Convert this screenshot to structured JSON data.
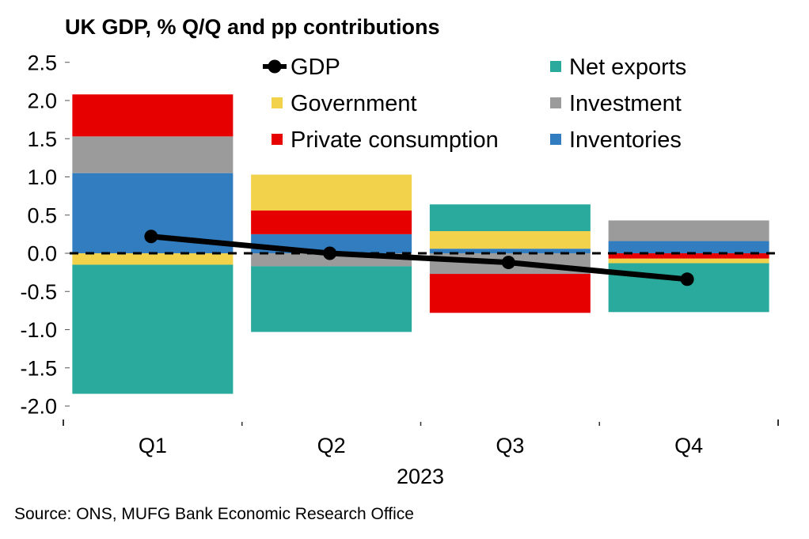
{
  "chart_data": {
    "type": "bar",
    "stacked": true,
    "title": "UK GDP, % Q/Q and pp contributions",
    "xlabel": "2023",
    "ylabel": "",
    "ylim": [
      -2.0,
      2.5
    ],
    "yticks": [
      "2.5",
      "2.0",
      "1.5",
      "1.0",
      "0.5",
      "0.0",
      "-0.5",
      "-1.0",
      "-1.5",
      "-2.0"
    ],
    "ytick_values": [
      2.5,
      2.0,
      1.5,
      1.0,
      0.5,
      0.0,
      -0.5,
      -1.0,
      -1.5,
      -2.0
    ],
    "categories": [
      "Q1",
      "Q2",
      "Q3",
      "Q4"
    ],
    "zero_line": "dashed",
    "grid": false,
    "legend_position": "top-right",
    "series": [
      {
        "name": "Inventories",
        "color": "#317dbf",
        "values": [
          1.05,
          0.25,
          0.06,
          0.16
        ]
      },
      {
        "name": "Investment",
        "color": "#9b9b9b",
        "values": [
          0.48,
          -0.17,
          -0.27,
          0.27
        ]
      },
      {
        "name": "Private consumption",
        "color": "#e60000",
        "values": [
          0.55,
          0.31,
          -0.51,
          -0.07
        ]
      },
      {
        "name": "Government",
        "color": "#f2d14b",
        "values": [
          -0.15,
          0.47,
          0.23,
          -0.06
        ]
      },
      {
        "name": "Net exports",
        "color": "#29aa9c",
        "values": [
          -1.69,
          -0.86,
          0.35,
          -0.64
        ]
      }
    ],
    "line_series": {
      "name": "GDP",
      "color": "#000000",
      "values": [
        0.22,
        0.0,
        -0.12,
        -0.34
      ]
    },
    "legend": [
      {
        "label": "GDP",
        "kind": "line"
      },
      {
        "label": "Net exports",
        "kind": "box",
        "color": "#29aa9c"
      },
      {
        "label": "Government",
        "kind": "box",
        "color": "#f2d14b"
      },
      {
        "label": "Investment",
        "kind": "box",
        "color": "#9b9b9b"
      },
      {
        "label": "Private consumption",
        "kind": "box",
        "color": "#e60000"
      },
      {
        "label": "Inventories",
        "kind": "box",
        "color": "#317dbf"
      }
    ],
    "source": "Source: ONS, MUFG Bank Economic Research Office"
  }
}
